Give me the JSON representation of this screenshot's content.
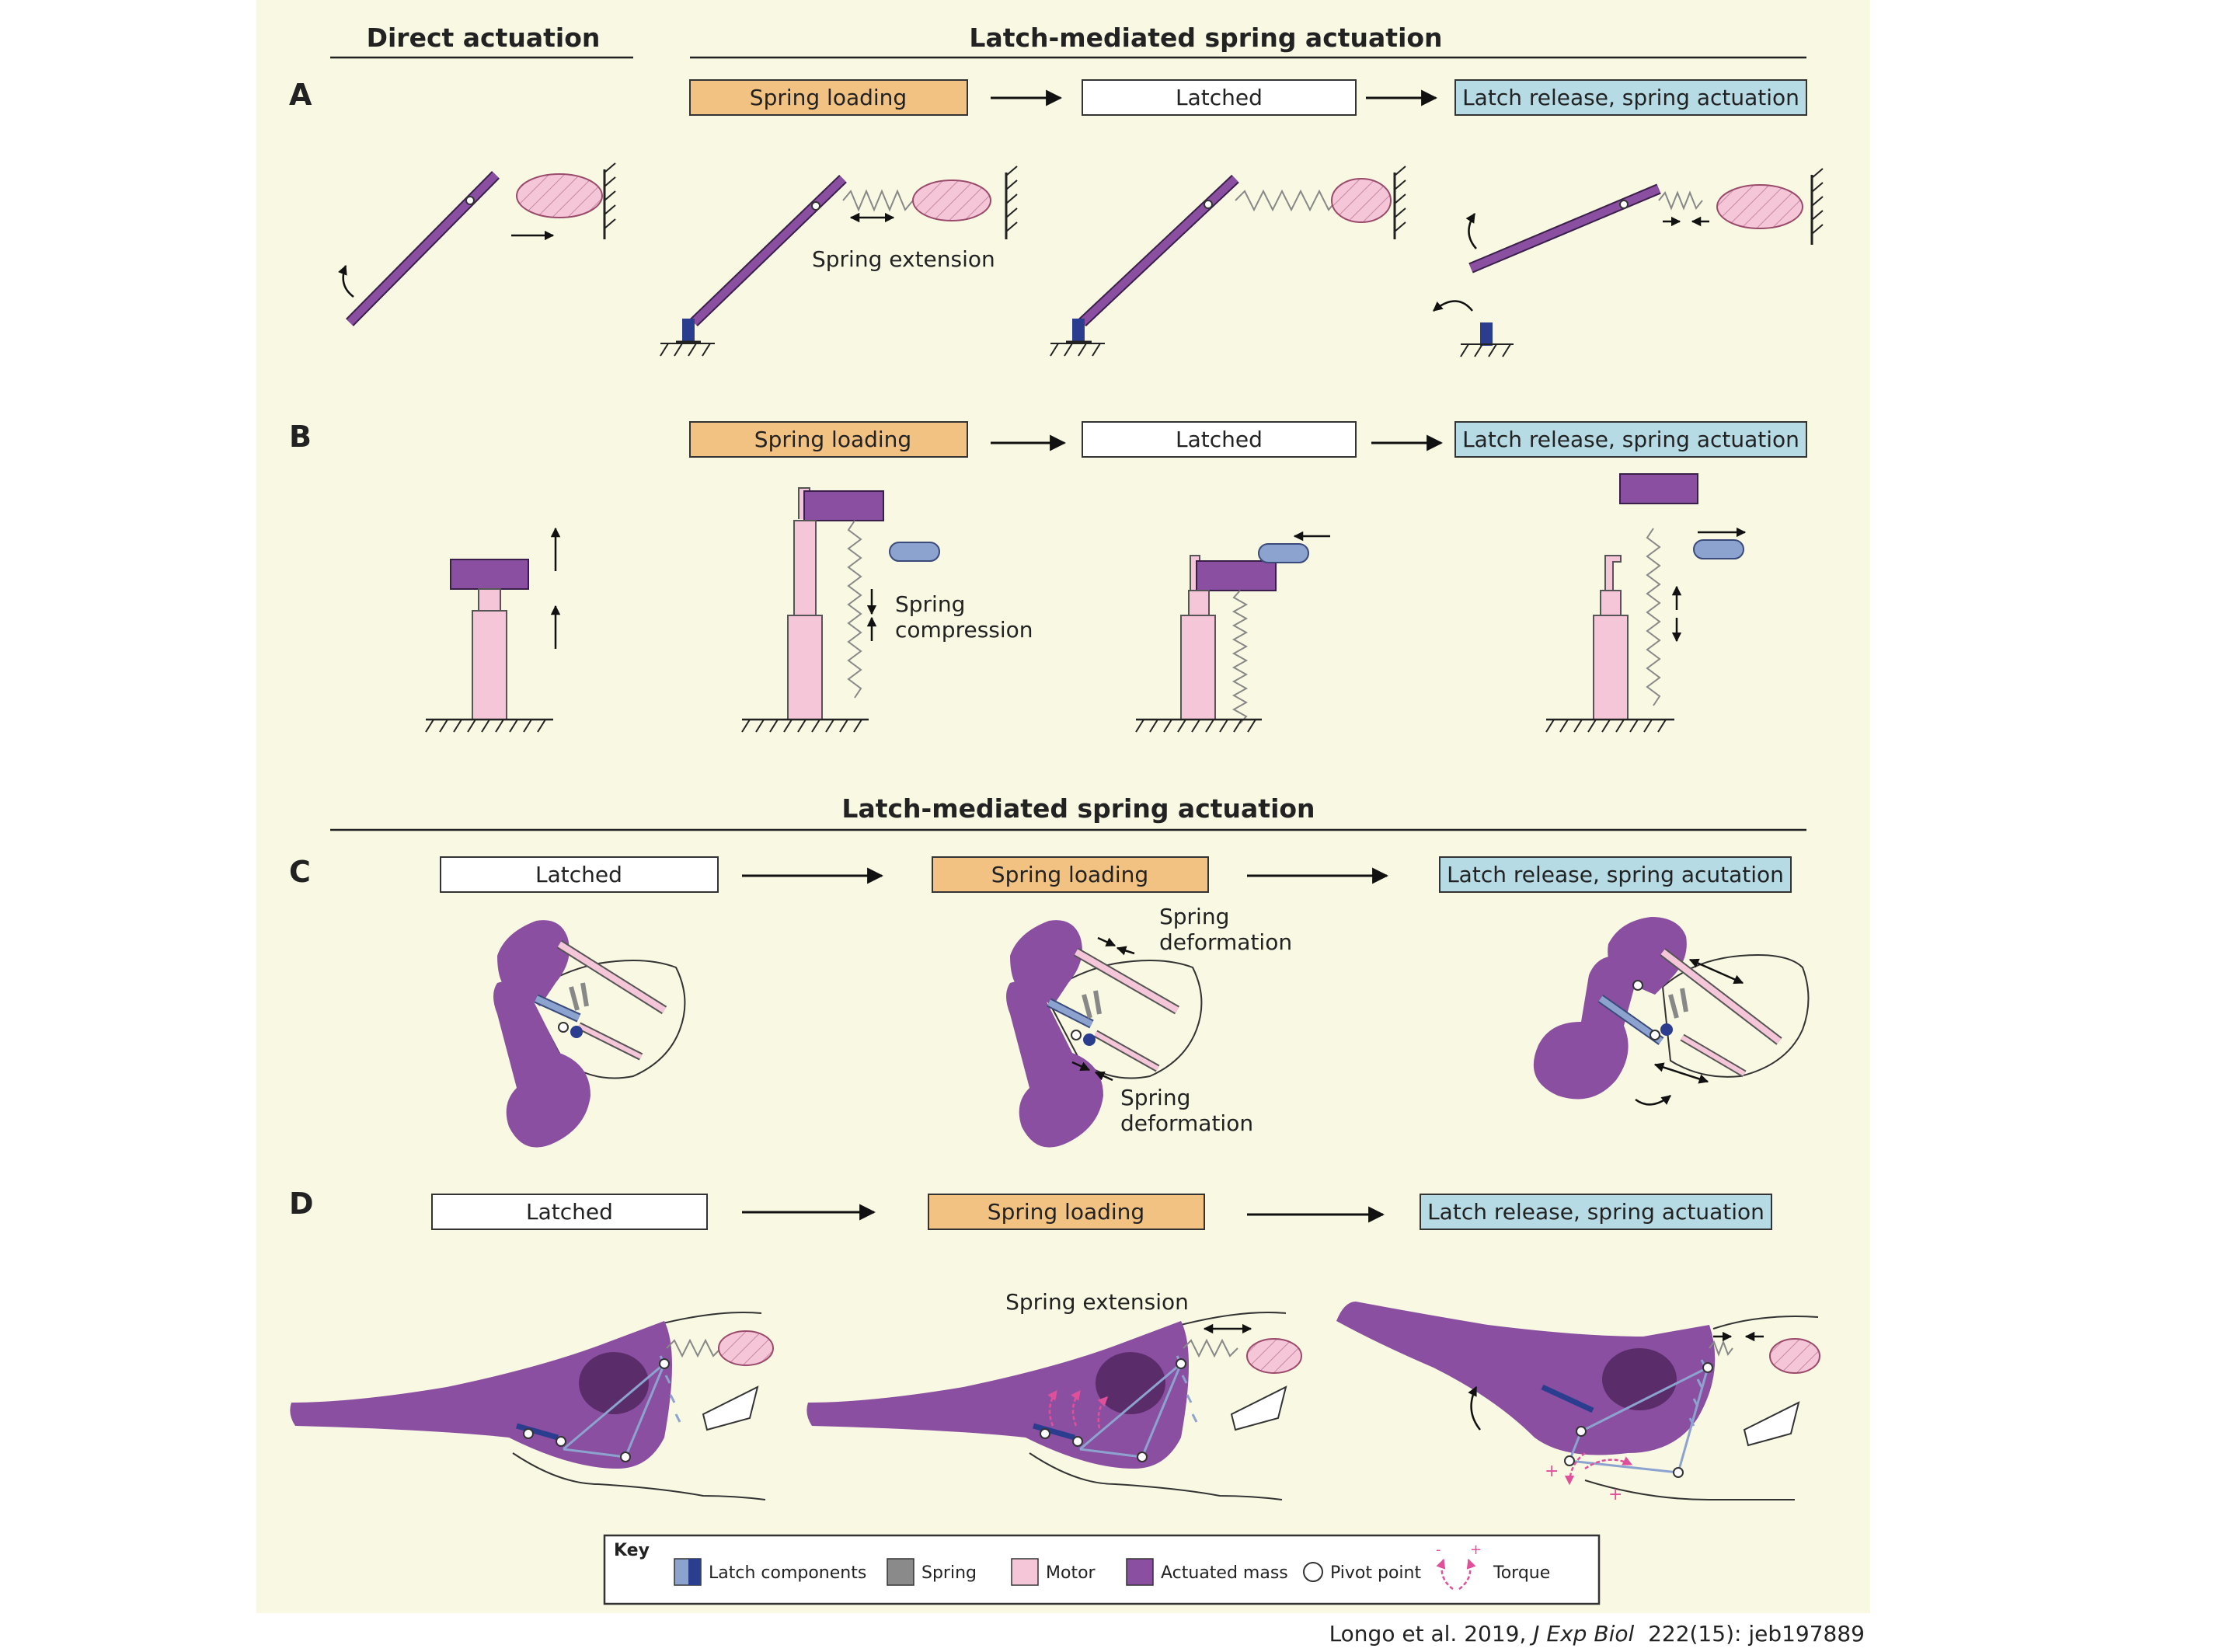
{
  "headers": {
    "direct": "Direct actuation",
    "lamsa_top": "Latch-mediated spring actuation",
    "lamsa_mid": "Latch-mediated spring actuation"
  },
  "panels": {
    "A": {
      "letter": "A",
      "stages": [
        "Spring loading",
        "Latched",
        "Latch release, spring actuation"
      ],
      "annotation": "Spring extension"
    },
    "B": {
      "letter": "B",
      "stages": [
        "Spring loading",
        "Latched",
        "Latch release, spring actuation"
      ],
      "annotation_line1": "Spring",
      "annotation_line2": "compression"
    },
    "C": {
      "letter": "C",
      "stages": [
        "Latched",
        "Spring loading",
        "Latch release, spring acutation"
      ],
      "annotation_top_line1": "Spring",
      "annotation_top_line2": "deformation",
      "annotation_bottom_line1": "Spring",
      "annotation_bottom_line2": "deformation"
    },
    "D": {
      "letter": "D",
      "stages": [
        "Latched",
        "Spring loading",
        "Latch release, spring actuation"
      ],
      "annotation": "Spring extension"
    }
  },
  "key": {
    "title": "Key",
    "items": [
      {
        "label": "Latch components",
        "icon": "latch-swatch"
      },
      {
        "label": "Spring",
        "icon": "spring-swatch"
      },
      {
        "label": "Motor",
        "icon": "motor-swatch"
      },
      {
        "label": "Actuated mass",
        "icon": "mass-swatch"
      },
      {
        "label": "Pivot point",
        "icon": "pivot-circle"
      },
      {
        "label": "Torque",
        "icon": "torque-arrows"
      }
    ]
  },
  "citation": {
    "prefix": "Longo et al. 2019, ",
    "journal": "J Exp Biol",
    "suffix": "  222(15): jeb197889"
  },
  "colors": {
    "panel_bg": "#f8f8e3",
    "loading": "#f2c283",
    "latched": "#ffffff",
    "release": "#b7dbe4",
    "mass": "#8a4fa0",
    "motor": "#f4c6d8",
    "latch": "#2a3d8f",
    "latch_light": "#8da3cf",
    "torque": "#e0509a"
  }
}
